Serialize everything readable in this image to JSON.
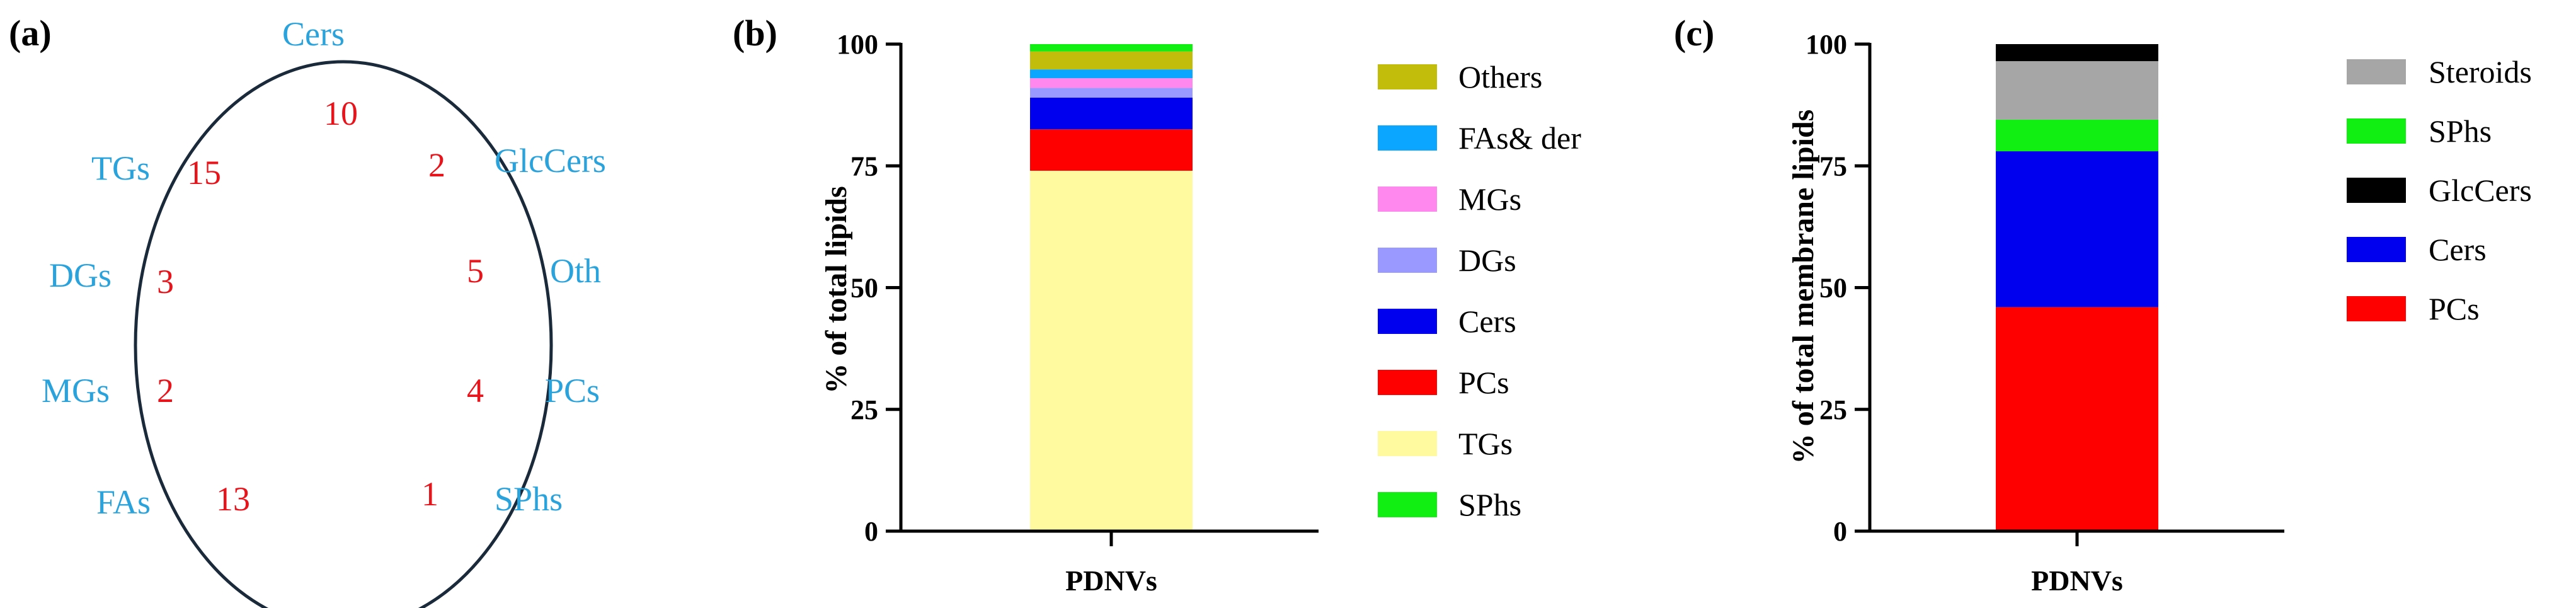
{
  "panels": {
    "a": {
      "letter": "(a)",
      "classes": [
        {
          "name": "Cers",
          "count": "10"
        },
        {
          "name": "GlcCers",
          "count": "2"
        },
        {
          "name": "Oth",
          "count": "5"
        },
        {
          "name": "PCs",
          "count": "4"
        },
        {
          "name": "SPhs",
          "count": "1"
        },
        {
          "name": "FAs",
          "count": "13"
        },
        {
          "name": "MGs",
          "count": "2"
        },
        {
          "name": "DGs",
          "count": "3"
        },
        {
          "name": "TGs",
          "count": "15"
        }
      ],
      "colors": {
        "names": "#2aa3dc",
        "counts": "#e8141c",
        "ellipse": "#1a2a3a"
      }
    },
    "b": {
      "letter": "(b)"
    },
    "c": {
      "letter": "(c)"
    }
  },
  "chart_data": [
    {
      "type": "bar",
      "stacked": true,
      "categories": [
        "PDNVs"
      ],
      "ylabel": "% of total lipids",
      "ylim": [
        0,
        100
      ],
      "yticks": [
        "0",
        "25",
        "50",
        "75",
        "100"
      ],
      "series": [
        {
          "name": "TGs",
          "values": [
            74
          ],
          "color": "#fffaa0"
        },
        {
          "name": "PCs",
          "values": [
            8.5
          ],
          "color": "#ff0000"
        },
        {
          "name": "Cers",
          "values": [
            6.5
          ],
          "color": "#0000ee"
        },
        {
          "name": "DGs",
          "values": [
            2.0
          ],
          "color": "#9999ff"
        },
        {
          "name": "MGs",
          "values": [
            2.0
          ],
          "color": "#ff88ee"
        },
        {
          "name": "FAs& der",
          "values": [
            1.8
          ],
          "color": "#0aa6ff"
        },
        {
          "name": "Others",
          "values": [
            3.7
          ],
          "color": "#c2bd0a"
        },
        {
          "name": "SPhs",
          "values": [
            1.5
          ],
          "color": "#11ee11"
        }
      ],
      "legend_order": [
        "Others",
        "FAs& der",
        "MGs",
        "DGs",
        "Cers",
        "PCs",
        "TGs",
        "SPhs"
      ],
      "legend_position": "right"
    },
    {
      "type": "bar",
      "stacked": true,
      "categories": [
        "PDNVs"
      ],
      "ylabel": "% of total membrane lipids",
      "ylim": [
        0,
        100
      ],
      "yticks": [
        "0",
        "25",
        "50",
        "75",
        "100"
      ],
      "series": [
        {
          "name": "PCs",
          "values": [
            46
          ],
          "color": "#ff0000"
        },
        {
          "name": "Cers",
          "values": [
            32
          ],
          "color": "#0000ee"
        },
        {
          "name": "SPhs",
          "values": [
            6.5
          ],
          "color": "#11ee11"
        },
        {
          "name": "Steroids",
          "values": [
            12
          ],
          "color": "#a6a6a6"
        },
        {
          "name": "GlcCers",
          "values": [
            3.5
          ],
          "color": "#000000"
        }
      ],
      "legend_order": [
        "Steroids",
        "SPhs",
        "GlcCers",
        "Cers",
        "PCs"
      ],
      "legend_position": "right"
    }
  ]
}
